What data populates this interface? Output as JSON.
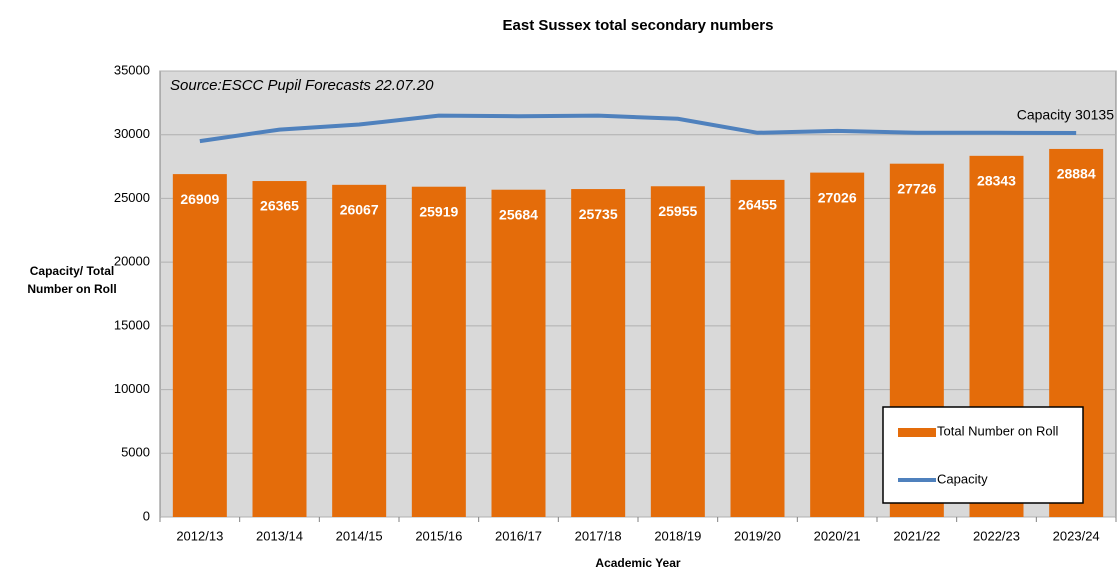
{
  "chart_data": {
    "type": "bar",
    "title": "East Sussex total secondary numbers",
    "x_label": "Academic Year",
    "y_label": "Capacity/ Total Number on Roll",
    "annotations": [
      "Source:ESCC Pupil Forecasts 22.07.20",
      "Capacity 30135"
    ],
    "categories": [
      "2012/13",
      "2013/14",
      "2014/15",
      "2015/16",
      "2016/17",
      "2017/18",
      "2018/19",
      "2019/20",
      "2020/21",
      "2021/22",
      "2022/23",
      "2023/24"
    ],
    "series": [
      {
        "name": "Total Number on Roll",
        "type": "bar",
        "color": "#e46c0a",
        "values": [
          26909,
          26365,
          26067,
          25919,
          25684,
          25735,
          25955,
          26455,
          27026,
          27726,
          28343,
          28884
        ]
      },
      {
        "name": "Capacity",
        "type": "line",
        "color": "#4f81bd",
        "values": [
          29500,
          30400,
          30800,
          31500,
          31450,
          31500,
          31250,
          30150,
          30300,
          30150,
          30150,
          30135
        ]
      }
    ],
    "ylim": [
      0,
      35000
    ],
    "yticks": [
      0,
      5000,
      10000,
      15000,
      20000,
      25000,
      30000,
      35000
    ],
    "grid": true,
    "legend": "lower right"
  }
}
